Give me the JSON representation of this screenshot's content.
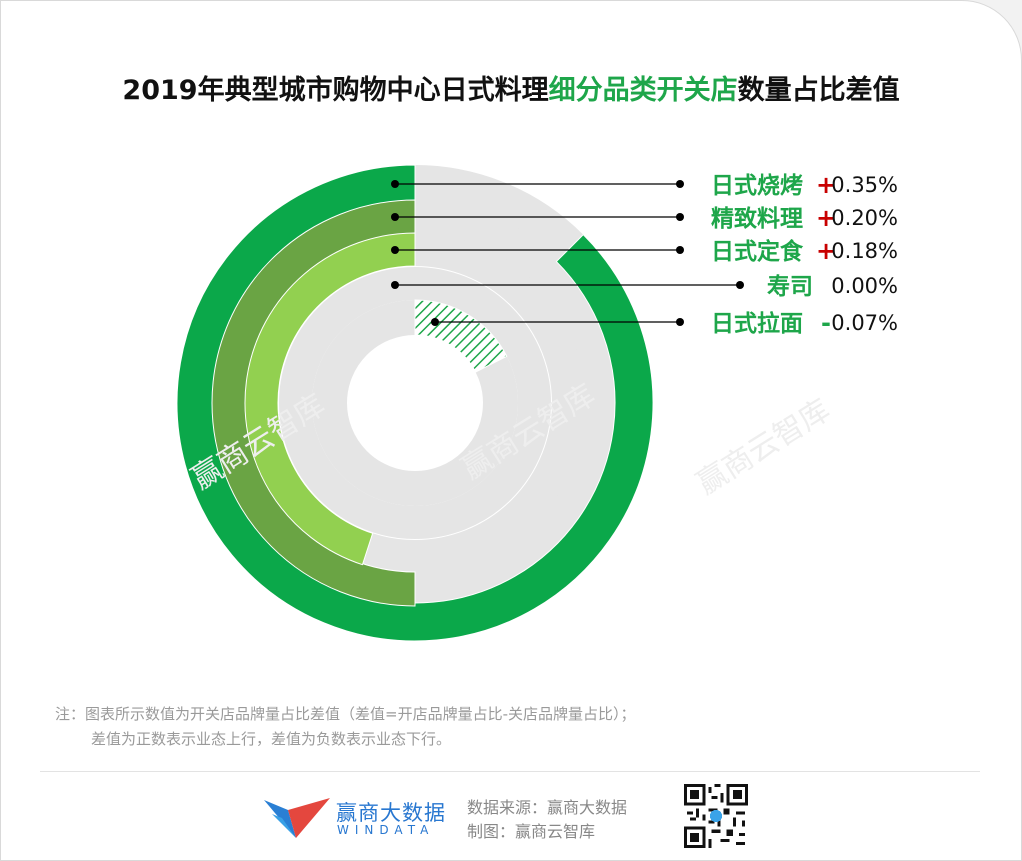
{
  "title": {
    "part1": "2019年典型城市购物中心日式料理",
    "highlight": "细分品类开关店",
    "part2": "数量占比差值"
  },
  "chart_data": {
    "type": "radial-bar",
    "unit": "%",
    "max": 0.4,
    "series": [
      {
        "name": "日式烧烤",
        "sign": "+",
        "value": 0.35,
        "label": "0.35%",
        "color": "#0ba84a",
        "sign_color": "#c80000"
      },
      {
        "name": "精致料理",
        "sign": "+",
        "value": 0.2,
        "label": "0.20%",
        "color": "#6aa444",
        "sign_color": "#c80000"
      },
      {
        "name": "日式定食",
        "sign": "+",
        "value": 0.18,
        "label": "0.18%",
        "color": "#92d050",
        "sign_color": "#c80000"
      },
      {
        "name": "寿司",
        "sign": "",
        "value": 0.0,
        "label": "0.00%",
        "color": "#0ba84a",
        "sign_color": "#c80000"
      },
      {
        "name": "日式拉面",
        "sign": "-",
        "value": -0.07,
        "label": "0.07%",
        "color": "#1ea64a",
        "sign_color": "#1ea64a"
      }
    ],
    "track_color": "#e5e5e5"
  },
  "note": {
    "line1": "注：图表所示数值为开关店品牌量占比差值（差值=开店品牌量占比-关店品牌量占比）；",
    "line2": "差值为正数表示业态上行，差值为负数表示业态下行。"
  },
  "watermark": "赢商云智库",
  "footer": {
    "brand": "赢商大数据",
    "brand_sub": "WINDATA",
    "source": "数据来源：赢商大数据",
    "credit": "制图：赢商云智库"
  }
}
